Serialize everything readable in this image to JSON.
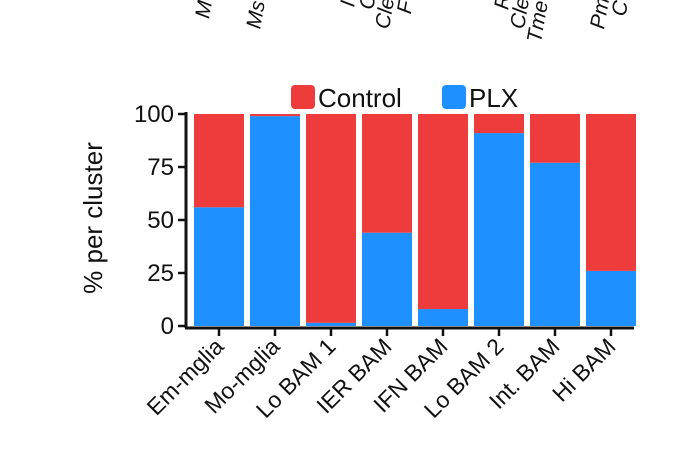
{
  "chart_data": {
    "type": "bar",
    "stacked": true,
    "percent": true,
    "ylabel": "% per cluster",
    "xlabel": "",
    "ylim": [
      0,
      100
    ],
    "yticks": [
      0,
      25,
      50,
      75,
      100
    ],
    "categories": [
      "Em-mglia",
      "Mo-mglia",
      "Lo BAM 1",
      "IER BAM",
      "IFN BAM",
      "Lo BAM 2",
      "Int. BAM",
      "Hi BAM"
    ],
    "series": [
      {
        "name": "PLX",
        "color": "#1e90ff",
        "values": [
          56,
          99,
          1.5,
          44,
          8,
          91,
          77,
          26
        ]
      },
      {
        "name": "Control",
        "color": "#ee3b3b",
        "values": [
          44,
          1,
          98.5,
          56,
          92,
          9,
          23,
          74
        ]
      }
    ],
    "legend": {
      "position": "top",
      "entries": [
        "Control",
        "PLX"
      ]
    },
    "grid": false,
    "top_labels_cropped": [
      {
        "lines": [
          "M"
        ]
      },
      {
        "lines": [
          "Ms"
        ]
      },
      {
        "lines": [
          "I"
        ]
      },
      {
        "lines": [
          "C",
          "Cle",
          "F"
        ]
      },
      {
        "lines": [
          "R",
          "Cle",
          "Tme"
        ]
      },
      {
        "lines": [
          "Pm",
          "C"
        ]
      }
    ]
  }
}
